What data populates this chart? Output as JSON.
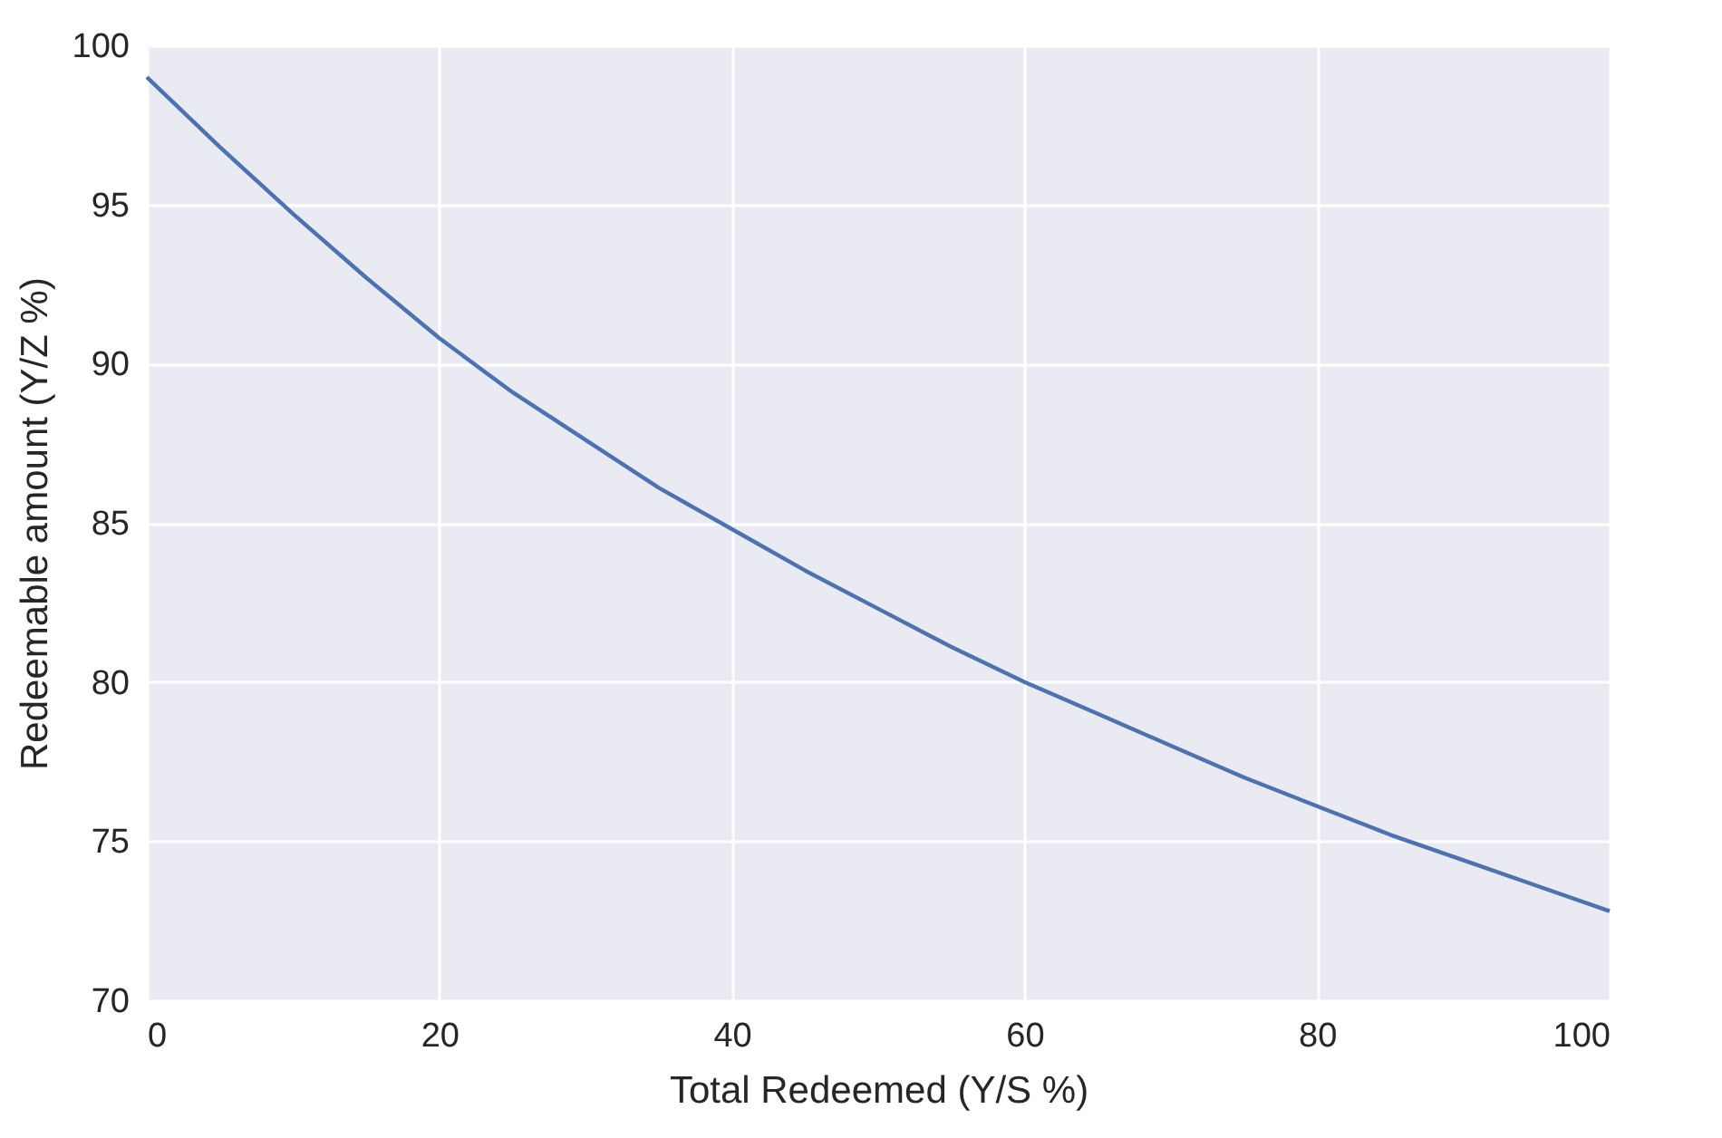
{
  "chart_data": {
    "type": "line",
    "xlabel": "Total Redeemed (Y/S %)",
    "ylabel": "Redeemable amount (Y/Z %)",
    "x": [
      0,
      5,
      10,
      15,
      20,
      25,
      30,
      35,
      40,
      45,
      50,
      55,
      60,
      65,
      70,
      75,
      80,
      85,
      90,
      95,
      100
    ],
    "series": [
      {
        "color": "#4c72b0",
        "values": [
          99,
          96.8,
          94.7,
          92.7,
          90.8,
          89.1,
          87.6,
          86.1,
          84.8,
          83.5,
          82.3,
          81.1,
          80.0,
          79.0,
          78.0,
          77.0,
          76.1,
          75.2,
          74.4,
          73.6,
          72.8
        ]
      }
    ],
    "xlim": [
      0,
      100
    ],
    "ylim": [
      70,
      100
    ],
    "xticks": [
      0,
      20,
      40,
      60,
      80,
      100
    ],
    "yticks": [
      70,
      75,
      80,
      85,
      90,
      95,
      100
    ],
    "grid": true,
    "line_style": "solid",
    "marker": "none"
  }
}
